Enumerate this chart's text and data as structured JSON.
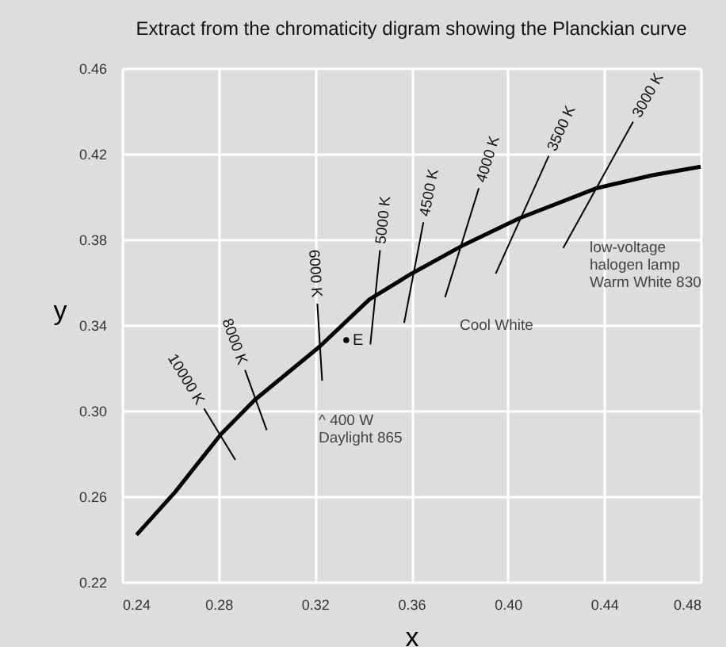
{
  "chart_data": {
    "type": "line",
    "title": "Extract from the chromaticity digram showing the Planckian curve",
    "xlabel": "x",
    "ylabel": "y",
    "xlim": [
      0.24,
      0.48
    ],
    "xticks": [
      0.24,
      0.28,
      0.32,
      0.36,
      {
        "value": 0.4,
        "label": "0.40"
      },
      0.44,
      0.48
    ],
    "ylim": [
      0.22,
      0.46
    ],
    "yticks": [
      0.22,
      0.26,
      {
        "value": 0.3,
        "label": "0.30"
      },
      0.34,
      0.38,
      0.42,
      0.46
    ],
    "grid": true,
    "series": [
      {
        "color": "#000000",
        "x": [
          0.246,
          0.262,
          0.281,
          0.295,
          0.322,
          0.3426,
          0.36,
          0.381,
          0.405,
          0.437,
          0.46,
          0.48
        ],
        "values": [
          0.242,
          0.262,
          0.289,
          0.305,
          0.33,
          0.352,
          0.364,
          0.377,
          0.39,
          0.404,
          0.41,
          0.414
        ]
      },
      {
        "name": "10000 K",
        "color": "#000000",
        "x": [
          0.274,
          0.287
        ],
        "values": [
          0.301,
          0.277
        ]
      },
      {
        "name": "8000 K",
        "color": "#000000",
        "x": [
          0.291,
          0.3
        ],
        "values": [
          0.319,
          0.291
        ]
      },
      {
        "name": "6000 K",
        "color": "#000000",
        "x": [
          0.321,
          0.323
        ],
        "values": [
          0.35,
          0.314
        ]
      },
      {
        "name": "5000 K",
        "color": "#000000",
        "x": [
          0.347,
          0.343
        ],
        "values": [
          0.375,
          0.331
        ]
      },
      {
        "name": "4500 K",
        "color": "#000000",
        "x": [
          0.365,
          0.357
        ],
        "values": [
          0.388,
          0.341
        ]
      },
      {
        "name": "4000 K",
        "color": "#000000",
        "x": [
          0.388,
          0.374
        ],
        "values": [
          0.404,
          0.353
        ]
      },
      {
        "name": "3500 K",
        "color": "#000000",
        "x": [
          0.417,
          0.395
        ],
        "values": [
          0.419,
          0.364
        ]
      },
      {
        "name": "3000 K",
        "color": "#000000",
        "x": [
          0.452,
          0.423
        ],
        "values": [
          0.435,
          0.376
        ]
      },
      {
        "name": "E",
        "type": "scatter",
        "marker": "circle",
        "color": "#000000",
        "x": [
          0.333
        ],
        "values": [
          0.333
        ]
      }
    ],
    "annotations": [
      "^ 400 W",
      "Daylight 865",
      "Cool White",
      "low-voltage",
      "halogen lamp",
      "Warm White 830"
    ]
  }
}
